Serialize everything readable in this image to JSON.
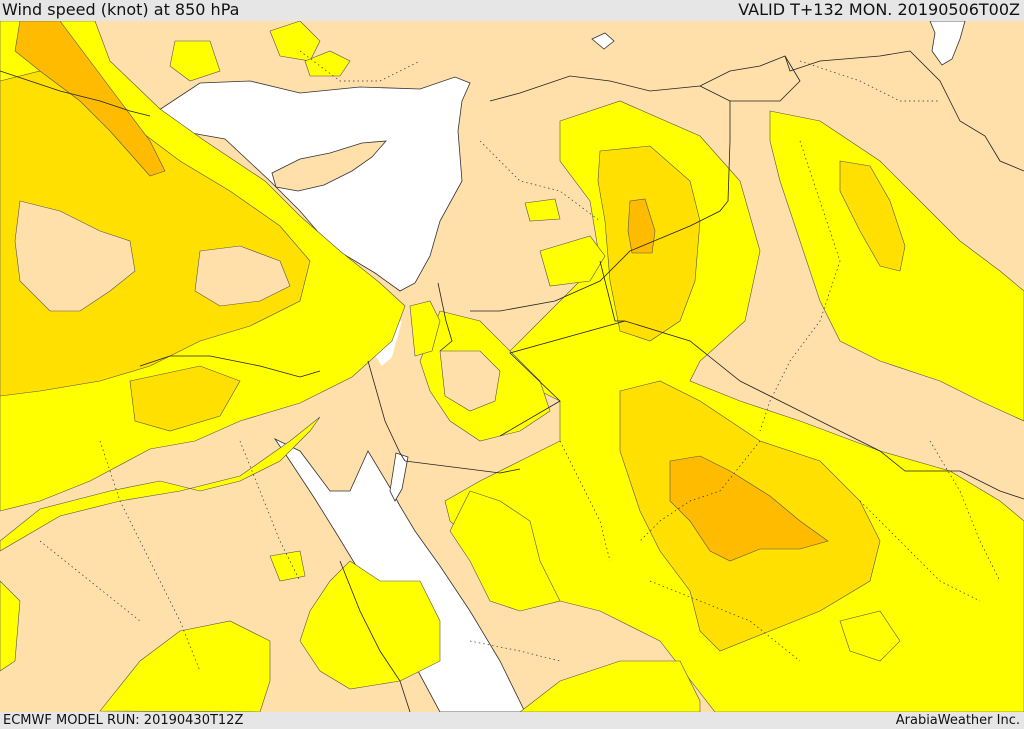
{
  "header": {
    "title": "Wind speed (knot) at 850 hPa",
    "valid": "VALID T+132 MON. 20190506T00Z"
  },
  "footer": {
    "model_run": "ECMWF MODEL RUN: 20190430T12Z",
    "credit": "ArabiaWeather Inc."
  },
  "colors": {
    "background": "#e6e6e6",
    "sea": "#ffffff",
    "land_calm": "#ffdfaa",
    "wind_band_1": "#ffff00",
    "wind_band_2": "#ffe000",
    "wind_band_3": "#ffbb00",
    "wind_band_4": "#ffa200",
    "boundary_line": "#222222"
  }
}
